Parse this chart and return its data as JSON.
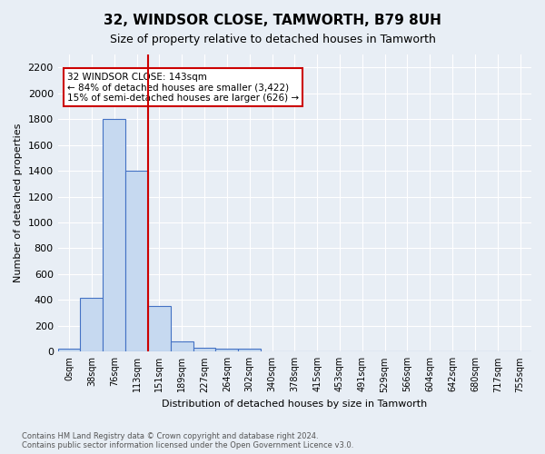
{
  "title": "32, WINDSOR CLOSE, TAMWORTH, B79 8UH",
  "subtitle": "Size of property relative to detached houses in Tamworth",
  "xlabel": "Distribution of detached houses by size in Tamworth",
  "ylabel": "Number of detached properties",
  "footnote": "Contains HM Land Registry data © Crown copyright and database right 2024.\nContains public sector information licensed under the Open Government Licence v3.0.",
  "bin_labels": [
    "0sqm",
    "38sqm",
    "76sqm",
    "113sqm",
    "151sqm",
    "189sqm",
    "227sqm",
    "264sqm",
    "302sqm",
    "340sqm",
    "378sqm",
    "415sqm",
    "453sqm",
    "491sqm",
    "529sqm",
    "566sqm",
    "604sqm",
    "642sqm",
    "680sqm",
    "717sqm",
    "755sqm"
  ],
  "bar_values": [
    20,
    420,
    1800,
    1400,
    350,
    80,
    30,
    25,
    20,
    0,
    0,
    0,
    0,
    0,
    0,
    0,
    0,
    0,
    0,
    0,
    0
  ],
  "bar_color": "#c6d9f0",
  "bar_edge_color": "#4472c4",
  "vline_x": 3.5,
  "vline_color": "#cc0000",
  "ylim": [
    0,
    2300
  ],
  "yticks": [
    0,
    200,
    400,
    600,
    800,
    1000,
    1200,
    1400,
    1600,
    1800,
    2000,
    2200
  ],
  "annotation_title": "32 WINDSOR CLOSE: 143sqm",
  "annotation_line1": "← 84% of detached houses are smaller (3,422)",
  "annotation_line2": "15% of semi-detached houses are larger (626) →",
  "annotation_box_color": "#cc0000",
  "background_color": "#e8eef5",
  "grid_color": "#ffffff"
}
